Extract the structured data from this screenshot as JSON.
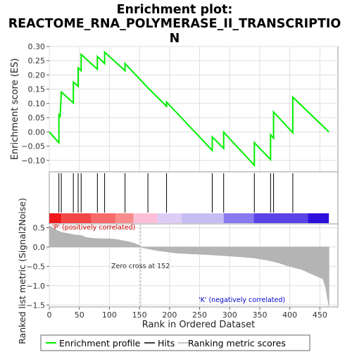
{
  "title_line1": "Enrichment plot:",
  "title_line2": "REACTOME_RNA_POLYMERASE_II_TRANSCRIPTIO",
  "title_line3": "N",
  "chart_data": [
    {
      "type": "line",
      "name": "enrichment",
      "ylabel": "Enrichment score (ES)",
      "ylim": [
        -0.14,
        0.3
      ],
      "yticks": [
        "−0.10",
        "−0.05",
        "0.00",
        "0.05",
        "0.10",
        "0.15",
        "0.20",
        "0.25",
        "0.30"
      ],
      "ytick_values": [
        -0.1,
        -0.05,
        0.0,
        0.05,
        0.1,
        0.15,
        0.2,
        0.25,
        0.3
      ],
      "grid": true,
      "series": [
        {
          "name": "Enrichment profile",
          "color": "#00ee00",
          "points": [
            [
              0,
              0.0
            ],
            [
              16,
              -0.038
            ],
            [
              16,
              0.06
            ],
            [
              18,
              0.055
            ],
            [
              20,
              0.14
            ],
            [
              40,
              0.102
            ],
            [
              40,
              0.175
            ],
            [
              48,
              0.16
            ],
            [
              48,
              0.225
            ],
            [
              53,
              0.215
            ],
            [
              53,
              0.272
            ],
            [
              80,
              0.22
            ],
            [
              80,
              0.265
            ],
            [
              92,
              0.24
            ],
            [
              92,
              0.28
            ],
            [
              126,
              0.215
            ],
            [
              126,
              0.24
            ],
            [
              164,
              0.155
            ],
            [
              195,
              0.09
            ],
            [
              195,
              0.105
            ],
            [
              271,
              -0.065
            ],
            [
              271,
              -0.018
            ],
            [
              290,
              -0.058
            ],
            [
              290,
              -0.001
            ],
            [
              341,
              -0.117
            ],
            [
              341,
              -0.038
            ],
            [
              368,
              -0.097
            ],
            [
              368,
              -0.01
            ],
            [
              373,
              -0.022
            ],
            [
              373,
              0.07
            ],
            [
              405,
              -0.003
            ],
            [
              405,
              0.122
            ],
            [
              465,
              0.0
            ]
          ]
        }
      ],
      "hits": [
        16,
        20,
        40,
        48,
        53,
        80,
        92,
        126,
        164,
        195,
        271,
        290,
        341,
        368,
        373,
        405
      ]
    },
    {
      "type": "heatmap",
      "name": "rank-color-bar",
      "colors": [
        "#ee1a1a",
        "#f24646",
        "#f66a6a",
        "#f98d8d",
        "#fcbfd7",
        "#ddcdf6",
        "#c7bdf4",
        "#8a78ee",
        "#5b44e6",
        "#2e10dd"
      ],
      "bounds": [
        0,
        20,
        70,
        110,
        140,
        180,
        220,
        290,
        340,
        430,
        465
      ]
    },
    {
      "type": "area",
      "name": "ranked-metric",
      "xlabel": "Rank in Ordered Dataset",
      "ylabel": "Ranked list metric (Signal2Noise)",
      "xlim": [
        0,
        480
      ],
      "ylim": [
        -1.55,
        0.6
      ],
      "xticks": [
        "0",
        "50",
        "100",
        "150",
        "200",
        "250",
        "300",
        "350",
        "400",
        "450"
      ],
      "xtick_values": [
        0,
        50,
        100,
        150,
        200,
        250,
        300,
        350,
        400,
        450
      ],
      "yticks": [
        "−1.5",
        "−1.0",
        "−0.5",
        "0.0",
        "0.5"
      ],
      "ytick_values": [
        -1.5,
        -1.0,
        -0.5,
        0.0,
        0.5
      ],
      "x": [
        0,
        10,
        20,
        30,
        40,
        55,
        60,
        75,
        90,
        100,
        110,
        120,
        130,
        140,
        150,
        152,
        160,
        170,
        180,
        195,
        210,
        230,
        260,
        290,
        320,
        340,
        360,
        380,
        400,
        420,
        440,
        455,
        460,
        462,
        465
      ],
      "values": [
        0.55,
        0.45,
        0.38,
        0.35,
        0.32,
        0.29,
        0.25,
        0.22,
        0.21,
        0.21,
        0.2,
        0.17,
        0.14,
        0.1,
        0.04,
        0.0,
        -0.03,
        -0.06,
        -0.09,
        -0.12,
        -0.15,
        -0.17,
        -0.19,
        -0.22,
        -0.25,
        -0.28,
        -0.33,
        -0.4,
        -0.5,
        -0.58,
        -0.72,
        -0.82,
        -1.05,
        -1.25,
        -1.52
      ],
      "color": "#b4b4b4",
      "zero_cross_line": 152,
      "annotations": {
        "positive": "'P' (positively correlated)",
        "negative": "'K' (negatively correlated)",
        "zero_cross": "Zero cross at 152"
      },
      "positive_color": "#cc0000",
      "negative_color": "#0000cc"
    }
  ],
  "legend": {
    "items": [
      {
        "label": "Enrichment profile",
        "color": "#00ee00"
      },
      {
        "label": "Hits",
        "color": "#000000"
      },
      {
        "label": "Ranking metric scores",
        "color": "#c8c8c8"
      }
    ]
  }
}
